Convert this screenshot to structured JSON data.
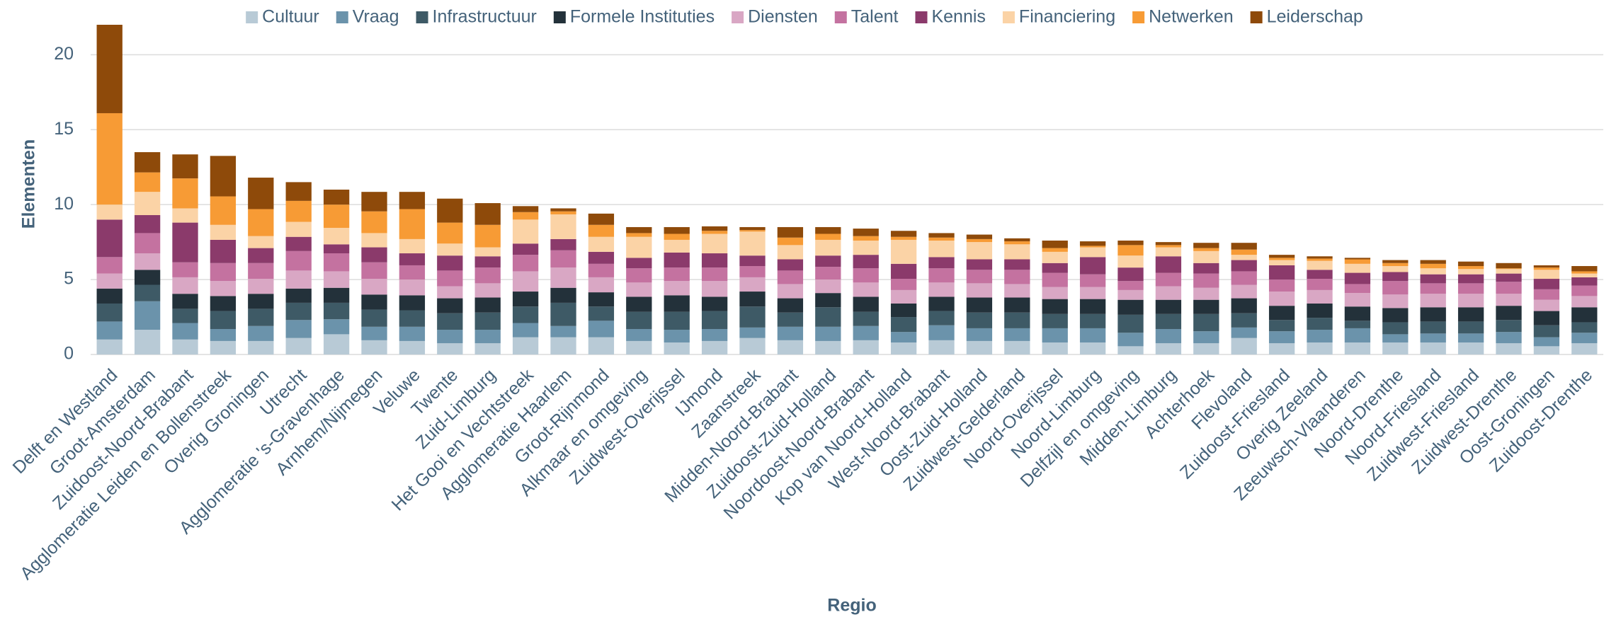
{
  "chart_data": {
    "type": "stacked_bar",
    "y_label": "Elementen",
    "x_label": "Regio",
    "categories": [
      "Delft en Westland",
      "Groot-Amsterdam",
      "Zuidoost-Noord-Brabant",
      "Agglomeratie Leiden en Bollenstreek",
      "Overig Groningen",
      "Utrecht",
      "Agglomeratie 's-Gravenhage",
      "Arnhem/Nijmegen",
      "Veluwe",
      "Twente",
      "Zuid-Limburg",
      "Het Gooi en Vechtstreek",
      "Agglomeratie Haarlem",
      "Groot-Rijnmond",
      "Alkmaar en omgeving",
      "Zuidwest-Overijssel",
      "IJmond",
      "Zaanstreek",
      "Midden-Noord-Brabant",
      "Zuidoost-Zuid-Holland",
      "Noordoost-Noord-Brabant",
      "Kop van Noord-Holland",
      "West-Noord-Brabant",
      "Oost-Zuid-Holland",
      "Zuidwest-Gelderland",
      "Noord-Overijssel",
      "Noord-Limburg",
      "Delfzijl en omgeving",
      "Midden-Limburg",
      "Achterhoek",
      "Flevoland",
      "Zuidoost-Friesland",
      "Overig Zeeland",
      "Zeeuwsch-Vlaanderen",
      "Noord-Drenthe",
      "Noord-Friesland",
      "Zuidwest-Friesland",
      "Zuidwest-Drenthe",
      "Oost-Groningen",
      "Zuidoost-Drenthe"
    ],
    "series": [
      {
        "name": "Cultuur",
        "color": "#b8cad6",
        "values": [
          1.0,
          1.65,
          1.0,
          0.9,
          0.9,
          1.1,
          1.35,
          0.95,
          0.9,
          0.75,
          0.75,
          1.15,
          1.15,
          1.15,
          0.9,
          0.8,
          0.9,
          1.1,
          0.95,
          0.9,
          0.95,
          0.8,
          0.95,
          0.9,
          0.9,
          0.8,
          0.8,
          0.55,
          0.75,
          0.75,
          1.1,
          0.75,
          0.8,
          0.8,
          0.8,
          0.8,
          0.8,
          0.75,
          0.55,
          0.75
        ]
      },
      {
        "name": "Vraag",
        "color": "#6b93ab",
        "values": [
          1.2,
          1.9,
          1.1,
          0.8,
          1.0,
          1.2,
          1.0,
          0.9,
          0.95,
          0.9,
          0.9,
          0.95,
          0.75,
          1.1,
          0.8,
          0.85,
          0.8,
          0.7,
          0.9,
          0.95,
          0.95,
          0.7,
          1.0,
          0.85,
          0.85,
          0.95,
          0.95,
          0.9,
          0.95,
          0.8,
          0.7,
          0.8,
          0.85,
          0.95,
          0.55,
          0.6,
          0.6,
          0.75,
          0.6,
          0.7
        ]
      },
      {
        "name": "Infrastructuur",
        "color": "#3e5a66",
        "values": [
          1.2,
          1.1,
          0.95,
          1.2,
          1.15,
          1.15,
          1.1,
          1.15,
          1.1,
          1.1,
          1.15,
          1.1,
          1.55,
          0.95,
          1.15,
          1.2,
          1.2,
          1.4,
          0.95,
          1.3,
          0.95,
          1.0,
          0.95,
          1.05,
          1.05,
          0.95,
          0.95,
          1.2,
          1.0,
          1.15,
          0.95,
          0.75,
          0.8,
          0.5,
          0.8,
          0.8,
          0.8,
          0.8,
          0.8,
          0.7
        ]
      },
      {
        "name": "Formele Instituties",
        "color": "#23313a",
        "values": [
          1.0,
          1.0,
          1.0,
          1.0,
          1.0,
          0.95,
          1.0,
          1.0,
          1.0,
          1.0,
          1.0,
          1.0,
          1.0,
          0.95,
          1.0,
          1.1,
          0.95,
          1.0,
          0.95,
          0.95,
          1.0,
          0.9,
          0.95,
          1.0,
          1.0,
          1.0,
          1.0,
          1.0,
          0.95,
          0.95,
          1.0,
          0.95,
          0.95,
          0.95,
          0.95,
          0.95,
          0.95,
          0.95,
          0.95,
          1.0
        ]
      },
      {
        "name": "Diensten",
        "color": "#d9a7c4",
        "values": [
          1.0,
          1.1,
          1.1,
          1.0,
          1.0,
          1.2,
          1.1,
          1.05,
          1.05,
          0.8,
          0.95,
          1.35,
          1.35,
          1.0,
          0.95,
          0.95,
          1.05,
          0.95,
          0.95,
          0.9,
          0.95,
          0.9,
          0.95,
          0.95,
          0.9,
          0.8,
          0.8,
          0.65,
          0.9,
          0.8,
          0.9,
          0.95,
          0.9,
          0.9,
          0.9,
          0.9,
          0.9,
          0.8,
          0.75,
          0.75
        ]
      },
      {
        "name": "Talent",
        "color": "#c472a0",
        "values": [
          1.1,
          1.35,
          1.0,
          1.2,
          1.05,
          1.3,
          1.2,
          1.1,
          0.95,
          1.05,
          1.05,
          1.1,
          1.15,
          0.9,
          0.95,
          0.9,
          0.9,
          0.75,
          0.9,
          0.85,
          0.95,
          0.75,
          0.95,
          0.9,
          0.95,
          0.95,
          0.85,
          0.6,
          0.9,
          0.95,
          0.9,
          0.8,
          0.75,
          0.6,
          0.9,
          0.7,
          0.7,
          0.8,
          0.7,
          0.7
        ]
      },
      {
        "name": "Kennis",
        "color": "#8b3a6b",
        "values": [
          2.5,
          1.2,
          2.65,
          1.55,
          1.0,
          0.95,
          0.6,
          1.0,
          0.8,
          1.0,
          0.75,
          0.75,
          0.75,
          0.8,
          0.7,
          1.0,
          0.95,
          0.7,
          0.75,
          0.75,
          0.9,
          1.0,
          0.75,
          0.7,
          0.7,
          0.65,
          1.15,
          0.9,
          1.1,
          0.7,
          0.75,
          0.95,
          0.6,
          0.75,
          0.6,
          0.6,
          0.6,
          0.55,
          0.7,
          0.55
        ]
      },
      {
        "name": "Financiering",
        "color": "#fbd3a6",
        "values": [
          1.0,
          1.55,
          0.95,
          1.0,
          0.8,
          1.0,
          1.1,
          0.95,
          0.95,
          0.8,
          0.6,
          1.6,
          1.65,
          1.0,
          1.4,
          0.85,
          1.3,
          1.6,
          0.95,
          1.05,
          0.95,
          1.6,
          1.1,
          1.15,
          1.0,
          0.75,
          0.65,
          0.8,
          0.6,
          0.8,
          0.35,
          0.35,
          0.6,
          0.6,
          0.4,
          0.4,
          0.35,
          0.3,
          0.6,
          0.25
        ]
      },
      {
        "name": "Netwerken",
        "color": "#f79b35",
        "values": [
          6.1,
          1.3,
          2.0,
          1.9,
          1.8,
          1.4,
          1.55,
          1.45,
          2.0,
          1.4,
          1.5,
          0.5,
          0.2,
          0.8,
          0.25,
          0.4,
          0.2,
          0.1,
          0.5,
          0.4,
          0.3,
          0.2,
          0.2,
          0.2,
          0.2,
          0.25,
          0.1,
          0.7,
          0.15,
          0.2,
          0.35,
          0.15,
          0.15,
          0.3,
          0.2,
          0.3,
          0.2,
          0.05,
          0.15,
          0.15
        ]
      },
      {
        "name": "Leiderschap",
        "color": "#8e4a0a",
        "values": [
          5.9,
          1.35,
          1.6,
          2.7,
          2.1,
          1.25,
          1.0,
          1.3,
          1.15,
          1.6,
          1.45,
          0.4,
          0.2,
          0.75,
          0.4,
          0.45,
          0.3,
          0.2,
          0.7,
          0.45,
          0.5,
          0.4,
          0.3,
          0.3,
          0.2,
          0.5,
          0.3,
          0.3,
          0.2,
          0.35,
          0.45,
          0.2,
          0.15,
          0.1,
          0.2,
          0.25,
          0.3,
          0.35,
          0.15,
          0.35
        ]
      }
    ],
    "ylim": [
      0,
      22
    ],
    "yticks": [
      0,
      5,
      10,
      15,
      20
    ],
    "grid": true,
    "legend": "top"
  }
}
